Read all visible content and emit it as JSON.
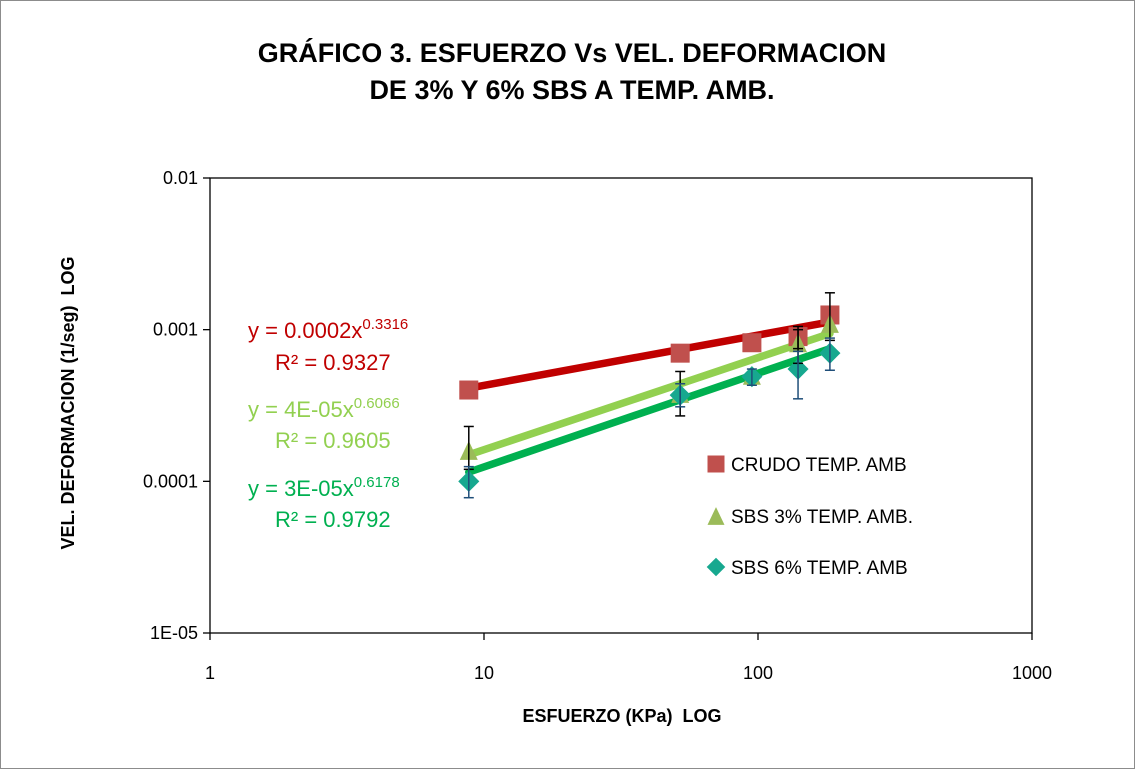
{
  "chart_data": {
    "type": "scatter",
    "title_lines": [
      "GRÁFICO 3. ESFUERZO Vs VEL. DEFORMACION",
      "DE 3% Y 6% SBS A TEMP. AMB."
    ],
    "xlabel": "ESFUERZO (KPa)  LOG",
    "ylabel": "VEL. DEFORMACION (1/seg)  LOG",
    "x_scale": "log",
    "y_scale": "log",
    "xlim": [
      1,
      1000
    ],
    "ylim": [
      1e-05,
      0.01
    ],
    "x_ticks": [
      1,
      10,
      100,
      1000
    ],
    "x_tick_labels": [
      "1",
      "10",
      "100",
      "1000"
    ],
    "y_ticks": [
      1e-05,
      0.0001,
      0.001,
      0.01
    ],
    "y_tick_labels": [
      "1E-05",
      "0.0001",
      "0.001",
      "0.01"
    ],
    "grid": false,
    "legend_position": "right",
    "series": [
      {
        "name": "CRUDO TEMP. AMB",
        "marker": "square",
        "color": "#c0504d",
        "trend_color": "#c00000",
        "points": [
          {
            "x": 8.8,
            "y": 0.0004
          },
          {
            "x": 52,
            "y": 0.0007
          },
          {
            "x": 95,
            "y": 0.00082
          },
          {
            "x": 140,
            "y": 0.0009
          },
          {
            "x": 183,
            "y": 0.00125
          }
        ],
        "error_bars": [
          {
            "x": 140,
            "y": 0.0009,
            "low": 0.00075,
            "high": 0.00105
          },
          {
            "x": 183,
            "y": 0.00125,
            "low": 0.00085,
            "high": 0.00175
          }
        ],
        "trend": {
          "a": 0.0002,
          "b": 0.3316,
          "x_from": 8.8,
          "x_to": 183
        },
        "equation": {
          "prefix": "y = 0.0002x",
          "exponent": "0.3316",
          "r2": "R² = 0.9327"
        }
      },
      {
        "name": "SBS 3% TEMP. AMB.",
        "marker": "triangle",
        "color": "#9bbb59",
        "trend_color": "#92d050",
        "points": [
          {
            "x": 8.8,
            "y": 0.00016
          },
          {
            "x": 52,
            "y": 0.00038
          },
          {
            "x": 95,
            "y": 0.0005
          },
          {
            "x": 140,
            "y": 0.00082
          },
          {
            "x": 183,
            "y": 0.0011
          }
        ],
        "error_bars": [
          {
            "x": 8.8,
            "y": 0.00016,
            "low": 0.00012,
            "high": 0.00023
          },
          {
            "x": 52,
            "y": 0.00038,
            "low": 0.00027,
            "high": 0.00053
          },
          {
            "x": 140,
            "y": 0.00082,
            "low": 0.0006,
            "high": 0.001
          }
        ],
        "trend": {
          "a": 4e-05,
          "b": 0.6066,
          "x_from": 8.8,
          "x_to": 183
        },
        "equation": {
          "prefix": "y = 4E-05x",
          "exponent": "0.6066",
          "r2": "R² = 0.9605"
        }
      },
      {
        "name": "SBS 6% TEMP. AMB",
        "marker": "diamond",
        "color": "#17a88f",
        "trend_color": "#00b050",
        "points": [
          {
            "x": 8.8,
            "y": 0.0001
          },
          {
            "x": 52,
            "y": 0.00037
          },
          {
            "x": 95,
            "y": 0.00049
          },
          {
            "x": 140,
            "y": 0.00055
          },
          {
            "x": 183,
            "y": 0.0007
          }
        ],
        "error_bars": [
          {
            "x": 8.8,
            "y": 0.0001,
            "low": 7.8e-05,
            "high": 0.000125
          },
          {
            "x": 52,
            "y": 0.00037,
            "low": 0.00031,
            "high": 0.00044
          },
          {
            "x": 95,
            "y": 0.00049,
            "low": 0.00043,
            "high": 0.00055
          },
          {
            "x": 140,
            "y": 0.00055,
            "low": 0.00035,
            "high": 0.00072
          },
          {
            "x": 183,
            "y": 0.0007,
            "low": 0.00054,
            "high": 0.00088
          }
        ],
        "trend": {
          "a": 3e-05,
          "b": 0.6178,
          "x_from": 8.8,
          "x_to": 183
        },
        "equation": {
          "prefix": "y = 3E-05x",
          "exponent": "0.6178",
          "r2": "R² = 0.9792"
        }
      }
    ]
  }
}
